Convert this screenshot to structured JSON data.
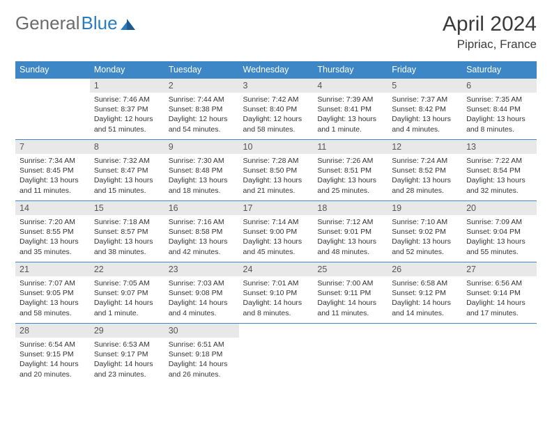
{
  "logo": {
    "part1": "General",
    "part2": "Blue"
  },
  "title": "April 2024",
  "location": "Pipriac, France",
  "colors": {
    "header_bg": "#3d87c7",
    "header_fg": "#ffffff",
    "daynum_bg": "#e8e8e8",
    "border": "#3d87c7",
    "text": "#333333"
  },
  "columns": [
    "Sunday",
    "Monday",
    "Tuesday",
    "Wednesday",
    "Thursday",
    "Friday",
    "Saturday"
  ],
  "weeks": [
    [
      {
        "day": null
      },
      {
        "day": 1,
        "sunrise": "7:46 AM",
        "sunset": "8:37 PM",
        "daylight": "12 hours and 51 minutes."
      },
      {
        "day": 2,
        "sunrise": "7:44 AM",
        "sunset": "8:38 PM",
        "daylight": "12 hours and 54 minutes."
      },
      {
        "day": 3,
        "sunrise": "7:42 AM",
        "sunset": "8:40 PM",
        "daylight": "12 hours and 58 minutes."
      },
      {
        "day": 4,
        "sunrise": "7:39 AM",
        "sunset": "8:41 PM",
        "daylight": "13 hours and 1 minute."
      },
      {
        "day": 5,
        "sunrise": "7:37 AM",
        "sunset": "8:42 PM",
        "daylight": "13 hours and 4 minutes."
      },
      {
        "day": 6,
        "sunrise": "7:35 AM",
        "sunset": "8:44 PM",
        "daylight": "13 hours and 8 minutes."
      }
    ],
    [
      {
        "day": 7,
        "sunrise": "7:34 AM",
        "sunset": "8:45 PM",
        "daylight": "13 hours and 11 minutes."
      },
      {
        "day": 8,
        "sunrise": "7:32 AM",
        "sunset": "8:47 PM",
        "daylight": "13 hours and 15 minutes."
      },
      {
        "day": 9,
        "sunrise": "7:30 AM",
        "sunset": "8:48 PM",
        "daylight": "13 hours and 18 minutes."
      },
      {
        "day": 10,
        "sunrise": "7:28 AM",
        "sunset": "8:50 PM",
        "daylight": "13 hours and 21 minutes."
      },
      {
        "day": 11,
        "sunrise": "7:26 AM",
        "sunset": "8:51 PM",
        "daylight": "13 hours and 25 minutes."
      },
      {
        "day": 12,
        "sunrise": "7:24 AM",
        "sunset": "8:52 PM",
        "daylight": "13 hours and 28 minutes."
      },
      {
        "day": 13,
        "sunrise": "7:22 AM",
        "sunset": "8:54 PM",
        "daylight": "13 hours and 32 minutes."
      }
    ],
    [
      {
        "day": 14,
        "sunrise": "7:20 AM",
        "sunset": "8:55 PM",
        "daylight": "13 hours and 35 minutes."
      },
      {
        "day": 15,
        "sunrise": "7:18 AM",
        "sunset": "8:57 PM",
        "daylight": "13 hours and 38 minutes."
      },
      {
        "day": 16,
        "sunrise": "7:16 AM",
        "sunset": "8:58 PM",
        "daylight": "13 hours and 42 minutes."
      },
      {
        "day": 17,
        "sunrise": "7:14 AM",
        "sunset": "9:00 PM",
        "daylight": "13 hours and 45 minutes."
      },
      {
        "day": 18,
        "sunrise": "7:12 AM",
        "sunset": "9:01 PM",
        "daylight": "13 hours and 48 minutes."
      },
      {
        "day": 19,
        "sunrise": "7:10 AM",
        "sunset": "9:02 PM",
        "daylight": "13 hours and 52 minutes."
      },
      {
        "day": 20,
        "sunrise": "7:09 AM",
        "sunset": "9:04 PM",
        "daylight": "13 hours and 55 minutes."
      }
    ],
    [
      {
        "day": 21,
        "sunrise": "7:07 AM",
        "sunset": "9:05 PM",
        "daylight": "13 hours and 58 minutes."
      },
      {
        "day": 22,
        "sunrise": "7:05 AM",
        "sunset": "9:07 PM",
        "daylight": "14 hours and 1 minute."
      },
      {
        "day": 23,
        "sunrise": "7:03 AM",
        "sunset": "9:08 PM",
        "daylight": "14 hours and 4 minutes."
      },
      {
        "day": 24,
        "sunrise": "7:01 AM",
        "sunset": "9:10 PM",
        "daylight": "14 hours and 8 minutes."
      },
      {
        "day": 25,
        "sunrise": "7:00 AM",
        "sunset": "9:11 PM",
        "daylight": "14 hours and 11 minutes."
      },
      {
        "day": 26,
        "sunrise": "6:58 AM",
        "sunset": "9:12 PM",
        "daylight": "14 hours and 14 minutes."
      },
      {
        "day": 27,
        "sunrise": "6:56 AM",
        "sunset": "9:14 PM",
        "daylight": "14 hours and 17 minutes."
      }
    ],
    [
      {
        "day": 28,
        "sunrise": "6:54 AM",
        "sunset": "9:15 PM",
        "daylight": "14 hours and 20 minutes."
      },
      {
        "day": 29,
        "sunrise": "6:53 AM",
        "sunset": "9:17 PM",
        "daylight": "14 hours and 23 minutes."
      },
      {
        "day": 30,
        "sunrise": "6:51 AM",
        "sunset": "9:18 PM",
        "daylight": "14 hours and 26 minutes."
      },
      {
        "day": null
      },
      {
        "day": null
      },
      {
        "day": null
      },
      {
        "day": null
      }
    ]
  ],
  "labels": {
    "sunrise": "Sunrise:",
    "sunset": "Sunset:",
    "daylight": "Daylight:"
  }
}
